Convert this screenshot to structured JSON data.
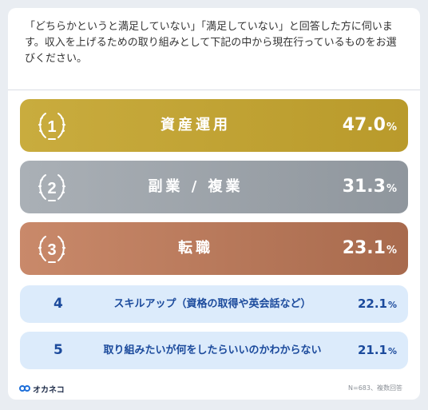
{
  "question": "「どちらかというと満足していない」「満足していない」と回答した方に伺います。収入を上げるための取り組みとして下記の中から現在行っているものをお選びください。",
  "chart_data": {
    "type": "bar",
    "unit": "%",
    "categories": [
      "資産運用",
      "副業 / 複業",
      "転職",
      "スキルアップ（資格の取得や英会話など）",
      "取り組みたいが何をしたらいいのかわからない"
    ],
    "ranks": [
      "1",
      "2",
      "3",
      "4",
      "5"
    ],
    "values": [
      47.0,
      31.3,
      23.1,
      22.1,
      21.1
    ],
    "value_labels": [
      "47.0",
      "31.3",
      "23.1",
      "22.1",
      "21.1"
    ]
  },
  "colors": {
    "gold": "#c0a236",
    "silver": "#9ca3aa",
    "bronze": "#b8785a",
    "light_row": "#dcebfb",
    "text_blue": "#1b4a9c"
  },
  "footer": {
    "brand": "オカネコ",
    "note": "N=683、複数回答"
  }
}
